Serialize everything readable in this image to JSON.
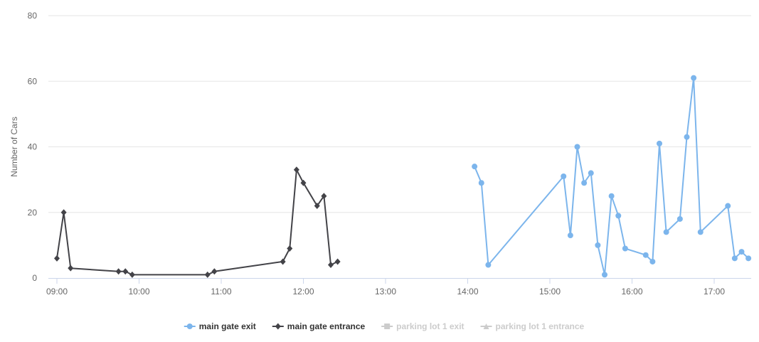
{
  "chart_data": {
    "type": "line",
    "title": "",
    "xlabel": "",
    "ylabel": "Number of Cars",
    "ylim": [
      0,
      80
    ],
    "y_ticks": [
      "0",
      "20",
      "40",
      "60",
      "80"
    ],
    "x_ticks": [
      "09:00",
      "10:00",
      "11:00",
      "12:00",
      "13:00",
      "14:00",
      "15:00",
      "16:00",
      "17:00"
    ],
    "grid": true,
    "legend_position": "bottom",
    "series": [
      {
        "name": "main gate exit",
        "color": "#7cb5ec",
        "marker": "circle",
        "visible": true,
        "points": [
          [
            "14:05",
            34
          ],
          [
            "14:10",
            29
          ],
          [
            "14:15",
            4
          ],
          [
            "15:10",
            31
          ],
          [
            "15:15",
            13
          ],
          [
            "15:20",
            40
          ],
          [
            "15:25",
            29
          ],
          [
            "15:30",
            32
          ],
          [
            "15:35",
            10
          ],
          [
            "15:40",
            1
          ],
          [
            "15:45",
            25
          ],
          [
            "15:50",
            19
          ],
          [
            "15:55",
            9
          ],
          [
            "16:10",
            7
          ],
          [
            "16:15",
            5
          ],
          [
            "16:20",
            41
          ],
          [
            "16:25",
            14
          ],
          [
            "16:35",
            18
          ],
          [
            "16:40",
            43
          ],
          [
            "16:45",
            61
          ],
          [
            "16:50",
            14
          ],
          [
            "17:10",
            22
          ],
          [
            "17:15",
            6
          ],
          [
            "17:20",
            8
          ],
          [
            "17:25",
            6
          ]
        ]
      },
      {
        "name": "main gate entrance",
        "color": "#434348",
        "marker": "diamond",
        "visible": true,
        "points": [
          [
            "09:00",
            6
          ],
          [
            "09:05",
            20
          ],
          [
            "09:10",
            3
          ],
          [
            "09:45",
            2
          ],
          [
            "09:50",
            2
          ],
          [
            "09:55",
            1
          ],
          [
            "10:50",
            1
          ],
          [
            "10:55",
            2
          ],
          [
            "11:45",
            5
          ],
          [
            "11:50",
            9
          ],
          [
            "11:55",
            33
          ],
          [
            "12:00",
            29
          ],
          [
            "12:10",
            22
          ],
          [
            "12:15",
            25
          ],
          [
            "12:20",
            4
          ],
          [
            "12:25",
            5
          ]
        ]
      },
      {
        "name": "parking lot 1 exit",
        "color": "#cccccc",
        "marker": "square",
        "visible": false,
        "points": []
      },
      {
        "name": "parking lot 1 entrance",
        "color": "#cccccc",
        "marker": "triangle",
        "visible": false,
        "points": []
      }
    ]
  }
}
